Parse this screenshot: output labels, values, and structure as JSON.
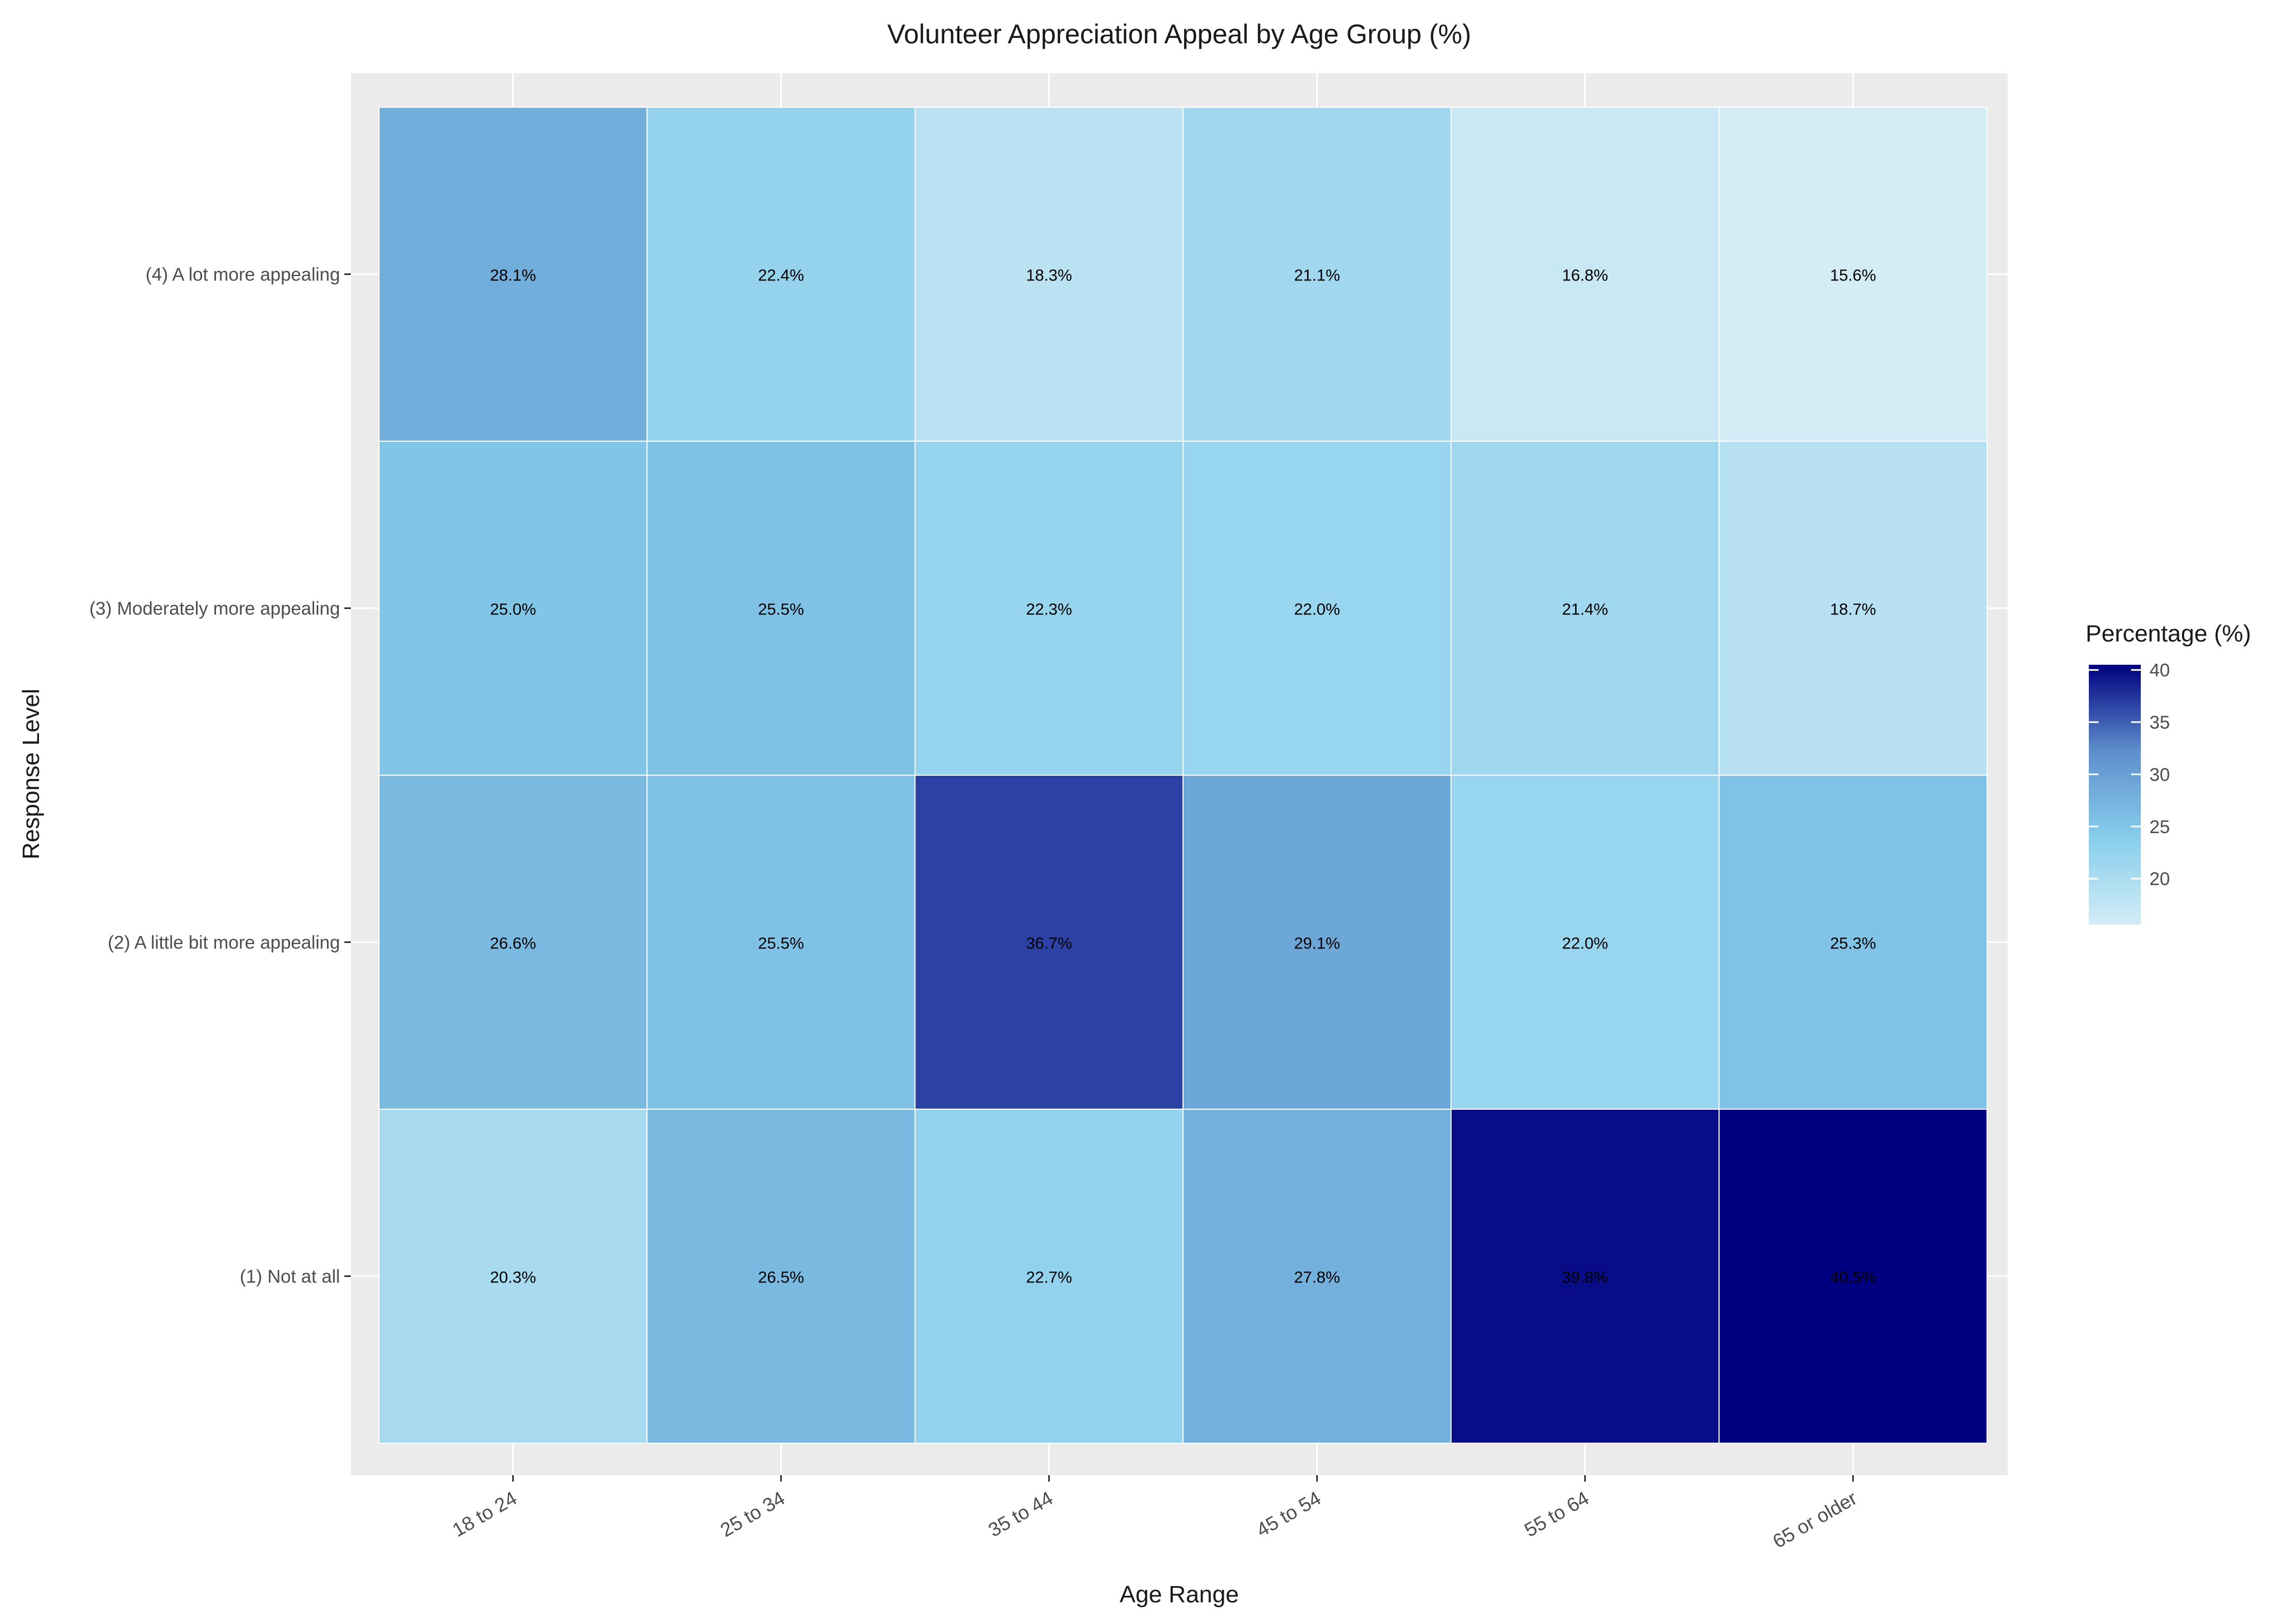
{
  "chart_data": {
    "type": "heatmap",
    "title": "Volunteer Appreciation Appeal by Age Group (%)",
    "xlabel": "Age Range",
    "ylabel": "Response Level",
    "x_categories": [
      "18 to 24",
      "25 to 34",
      "35 to 44",
      "45 to 54",
      "55 to 64",
      "65 or older"
    ],
    "y_categories": [
      "(4) A lot more appealing",
      "(3) Moderately more appealing",
      "(2) A little bit more appealing",
      "(1) Not at all"
    ],
    "values": [
      [
        28.1,
        22.4,
        18.3,
        21.1,
        16.8,
        15.6
      ],
      [
        25.0,
        25.5,
        22.3,
        22.0,
        21.4,
        18.7
      ],
      [
        26.6,
        25.5,
        36.7,
        29.1,
        22.0,
        25.3
      ],
      [
        20.3,
        26.5,
        22.7,
        27.8,
        39.8,
        40.5
      ]
    ],
    "value_suffix": "%",
    "legend": {
      "title": "Percentage (%)",
      "ticks": [
        20,
        25,
        30,
        35,
        40
      ],
      "range": [
        15.6,
        40.5
      ],
      "placement": "right"
    },
    "colorscale": [
      "#d3ecf6",
      "#87ceeb",
      "#5e8fcc",
      "#000080"
    ],
    "panel_background": "#ebebeb",
    "grid": true
  }
}
